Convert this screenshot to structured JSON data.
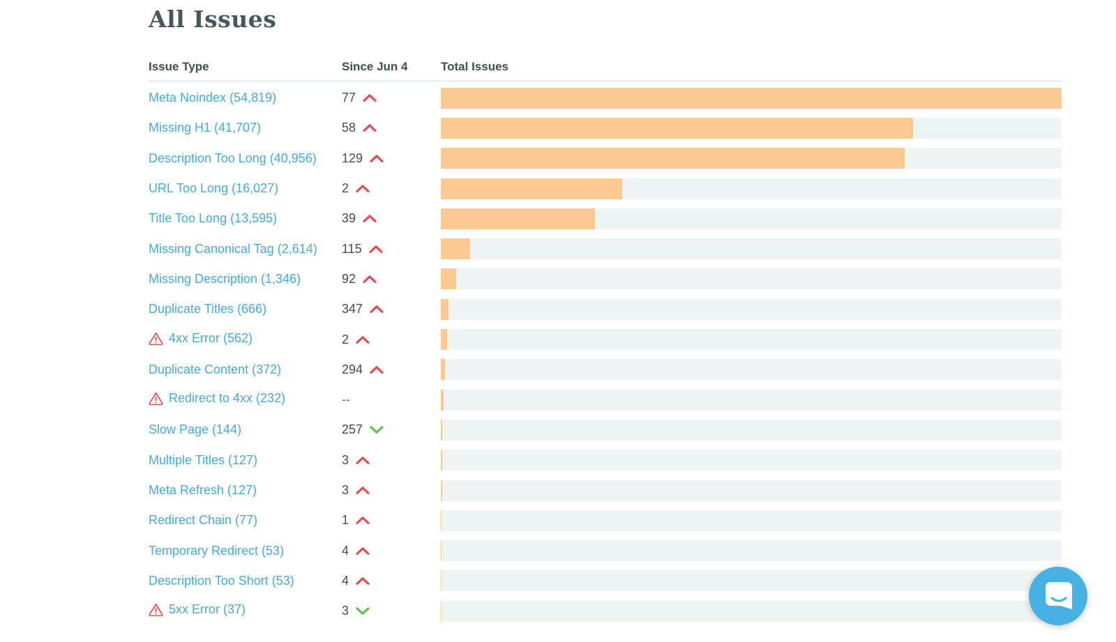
{
  "page": {
    "title": "All Issues"
  },
  "table": {
    "columns": [
      {
        "label": "Issue Type"
      },
      {
        "label": "Since Jun 4"
      },
      {
        "label": "Total Issues"
      }
    ],
    "max_total": 54819,
    "rows": [
      {
        "label": "Meta Noindex (54,819)",
        "total": 54819,
        "since": "77",
        "trend": "up",
        "warning": false
      },
      {
        "label": "Missing H1 (41,707)",
        "total": 41707,
        "since": "58",
        "trend": "up",
        "warning": false
      },
      {
        "label": "Description Too Long (40,956)",
        "total": 40956,
        "since": "129",
        "trend": "up",
        "warning": false
      },
      {
        "label": "URL Too Long (16,027)",
        "total": 16027,
        "since": "2",
        "trend": "up",
        "warning": false
      },
      {
        "label": "Title Too Long (13,595)",
        "total": 13595,
        "since": "39",
        "trend": "up",
        "warning": false
      },
      {
        "label": "Missing Canonical Tag (2,614)",
        "total": 2614,
        "since": "115",
        "trend": "up",
        "warning": false
      },
      {
        "label": "Missing Description (1,346)",
        "total": 1346,
        "since": "92",
        "trend": "up",
        "warning": false
      },
      {
        "label": "Duplicate Titles (666)",
        "total": 666,
        "since": "347",
        "trend": "up",
        "warning": false
      },
      {
        "label": "4xx Error (562)",
        "total": 562,
        "since": "2",
        "trend": "up",
        "warning": true
      },
      {
        "label": "Duplicate Content (372)",
        "total": 372,
        "since": "294",
        "trend": "up",
        "warning": false
      },
      {
        "label": "Redirect to 4xx (232)",
        "total": 232,
        "since": "--",
        "trend": "none",
        "warning": true
      },
      {
        "label": "Slow Page (144)",
        "total": 144,
        "since": "257",
        "trend": "down",
        "warning": false
      },
      {
        "label": "Multiple Titles (127)",
        "total": 127,
        "since": "3",
        "trend": "up",
        "warning": false
      },
      {
        "label": "Meta Refresh (127)",
        "total": 127,
        "since": "3",
        "trend": "up",
        "warning": false
      },
      {
        "label": "Redirect Chain (77)",
        "total": 77,
        "since": "1",
        "trend": "up",
        "warning": false
      },
      {
        "label": "Temporary Redirect (53)",
        "total": 53,
        "since": "4",
        "trend": "up",
        "warning": false
      },
      {
        "label": "Description Too Short (53)",
        "total": 53,
        "since": "4",
        "trend": "up",
        "warning": false
      },
      {
        "label": "5xx Error (37)",
        "total": 37,
        "since": "3",
        "trend": "down",
        "warning": true
      }
    ]
  },
  "colors": {
    "link_blue": "#45aad9",
    "bar_fill_orange": "#fcc993",
    "bar_track": "#edf4f3",
    "trend_up_red": "#e8494f",
    "trend_down_green": "#5ec14e",
    "warning_red": "#e8494f",
    "title_dark": "#47585d",
    "chat_blue": "#47b1e4"
  },
  "chat": {
    "icon": "chat-bubble-smile"
  }
}
